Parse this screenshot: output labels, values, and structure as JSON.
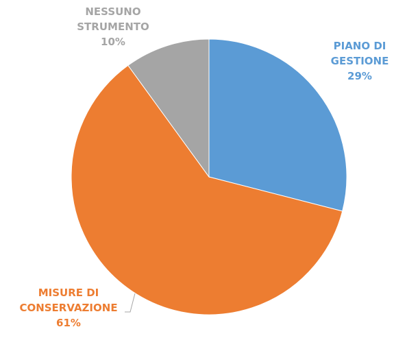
{
  "chart_data": {
    "type": "pie",
    "categories": [
      "PIANO DI\nGESTIONE",
      "MISURE DI\nCONSERVAZIONE",
      "NESSUNO\nSTRUMENTO"
    ],
    "values": [
      29,
      61,
      10
    ],
    "value_labels": [
      "29%",
      "61%",
      "10%"
    ],
    "colors": [
      "#5b9bd5",
      "#ed7d31",
      "#a5a5a5"
    ]
  }
}
